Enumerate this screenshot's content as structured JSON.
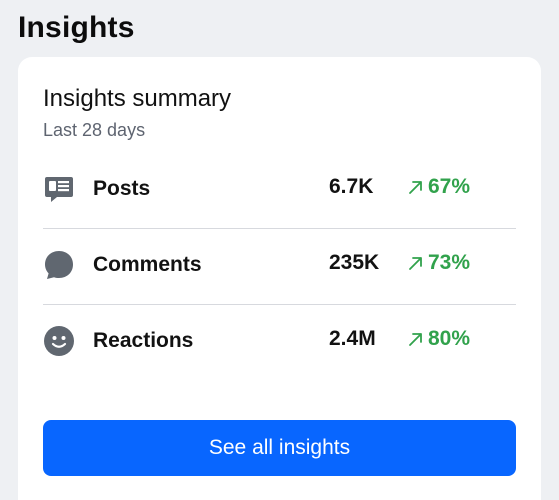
{
  "section": {
    "title": "Insights"
  },
  "summary": {
    "title": "Insights summary",
    "subtitle": "Last 28 days",
    "metrics": [
      {
        "label": "Posts",
        "value": "6.7K",
        "change": "67%",
        "icon": "posts-icon"
      },
      {
        "label": "Comments",
        "value": "235K",
        "change": "73%",
        "icon": "comment-bubble-icon"
      },
      {
        "label": "Reactions",
        "value": "2.4M",
        "change": "80%",
        "icon": "smiley-face-icon"
      }
    ],
    "trend_icon": "arrow-up-right-icon"
  },
  "button": {
    "label": "See all insights"
  },
  "colors": {
    "accent": "#0866ff",
    "positive": "#31a24c",
    "icon": "#606770",
    "divider": "#d7d9de"
  }
}
